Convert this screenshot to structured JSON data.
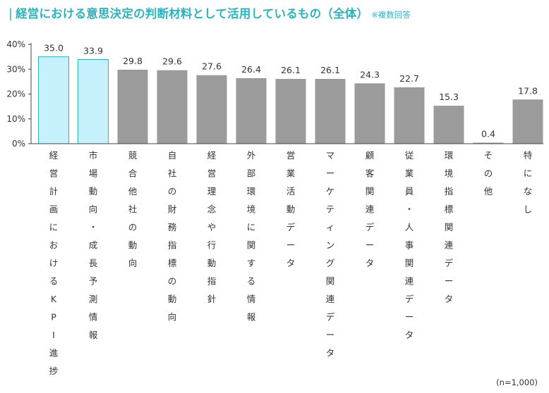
{
  "title": {
    "bar": "|",
    "main": "経営における意思決定の判断材料として活用しているもの（全体）",
    "note": "※複数回答"
  },
  "footnote": "(n=1,000)",
  "chart_data": {
    "type": "bar",
    "title": "経営における意思決定の判断材料として活用しているもの（全体）",
    "subtitle": "※複数回答",
    "xlabel": "",
    "ylabel": "",
    "ylim": [
      0,
      40
    ],
    "yticks": [
      0,
      10,
      20,
      30,
      40
    ],
    "yticklabels": [
      "0%",
      "10%",
      "20%",
      "30%",
      "40%"
    ],
    "grid": false,
    "categories": [
      "経営計画におけるKPI進捗",
      "市場動向・成長予測情報",
      "競合他社の動向",
      "自社の財務指標の動向",
      "経営理念や行動指針",
      "外部環境に関する情報",
      "営業活動データ",
      "マーケティング関連データ",
      "顧客関連データ",
      "従業員・人事関連データ",
      "環境指標関連データ",
      "その他",
      "特になし"
    ],
    "values": [
      35.0,
      33.9,
      29.8,
      29.6,
      27.6,
      26.4,
      26.1,
      26.1,
      24.3,
      22.7,
      15.3,
      0.4,
      17.8
    ],
    "value_labels": [
      "35.0",
      "33.9",
      "29.8",
      "29.6",
      "27.6",
      "26.4",
      "26.1",
      "26.1",
      "24.3",
      "22.7",
      "15.3",
      "0.4",
      "17.8"
    ],
    "bar_colors": [
      "#c6f0fb",
      "#c6f0fb",
      "#9b9b9b",
      "#9b9b9b",
      "#9b9b9b",
      "#9b9b9b",
      "#9b9b9b",
      "#9b9b9b",
      "#9b9b9b",
      "#9b9b9b",
      "#9b9b9b",
      "#9b9b9b",
      "#9b9b9b"
    ],
    "highlight_stroke": "#2bb3c0",
    "axis_color": "#444444",
    "text_color": "#333333",
    "n_label": "(n=1,000)"
  },
  "colors": {
    "accent": "#2bb3c0",
    "highlight_fill": "#c6f0fb",
    "bar_fill": "#9b9b9b"
  }
}
